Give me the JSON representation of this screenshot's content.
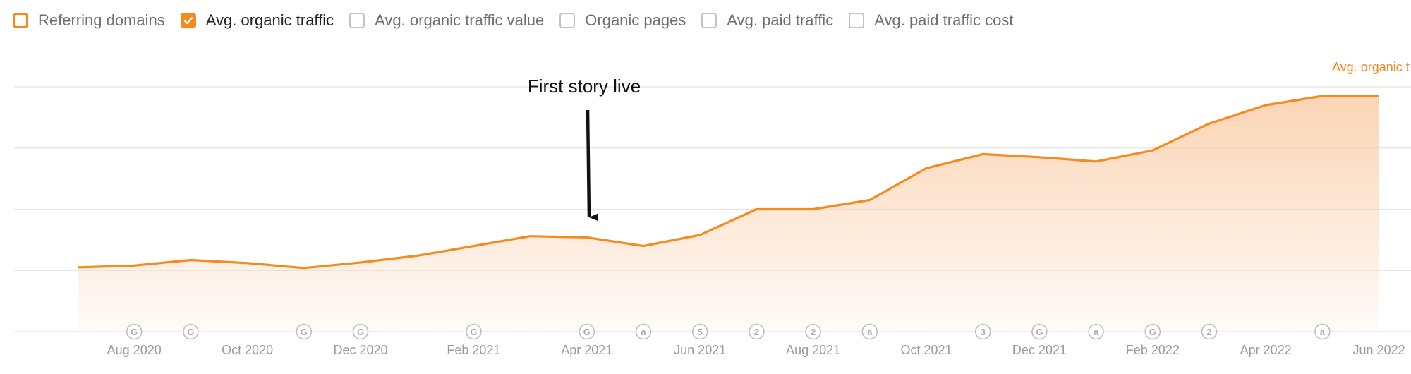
{
  "toolbar": {
    "items": [
      {
        "label": "Referring domains",
        "checked": false,
        "accent_outline": true
      },
      {
        "label": "Avg. organic traffic",
        "checked": true
      },
      {
        "label": "Avg. organic traffic value",
        "checked": false
      },
      {
        "label": "Organic pages",
        "checked": false
      },
      {
        "label": "Avg. paid traffic",
        "checked": false
      },
      {
        "label": "Avg. paid traffic cost",
        "checked": false
      }
    ]
  },
  "colors": {
    "accent": "#f58a1f",
    "area_fill_top": "#fbd2b0",
    "grid": "#e3e3e3",
    "muted_text": "#9a9a9a",
    "annotation": "#111111"
  },
  "chart_data": {
    "type": "area",
    "series": [
      {
        "name": "Avg. organic traffic",
        "values": [
          1.05,
          1.08,
          1.17,
          1.12,
          1.04,
          1.13,
          1.24,
          1.4,
          1.56,
          1.54,
          1.4,
          1.58,
          2.0,
          2.0,
          2.15,
          2.67,
          2.9,
          2.85,
          2.78,
          2.96,
          3.4,
          3.7,
          3.85,
          3.85
        ]
      }
    ],
    "x_ticks": [
      "Aug 2020",
      "Oct 2020",
      "Dec 2020",
      "Feb 2021",
      "Apr 2021",
      "Jun 2021",
      "Aug 2021",
      "Oct 2021",
      "Dec 2021",
      "Feb 2022",
      "Apr 2022",
      "Jun 2022"
    ],
    "ylim": [
      0,
      4
    ],
    "grid": true,
    "series_label": "Avg. organic t",
    "annotation": {
      "text": "First story live",
      "at_index": 9
    },
    "event_markers": [
      {
        "index": 1,
        "label": "G"
      },
      {
        "index": 2,
        "label": "G"
      },
      {
        "index": 4,
        "label": "G"
      },
      {
        "index": 5,
        "label": "G"
      },
      {
        "index": 7,
        "label": "G"
      },
      {
        "index": 9,
        "label": "G"
      },
      {
        "index": 10,
        "label": "a"
      },
      {
        "index": 11,
        "label": "5"
      },
      {
        "index": 12,
        "label": "2"
      },
      {
        "index": 13,
        "label": "2"
      },
      {
        "index": 14,
        "label": "a"
      },
      {
        "index": 16,
        "label": "3"
      },
      {
        "index": 17,
        "label": "G"
      },
      {
        "index": 18,
        "label": "a"
      },
      {
        "index": 19,
        "label": "G"
      },
      {
        "index": 20,
        "label": "2"
      },
      {
        "index": 22,
        "label": "a"
      }
    ]
  }
}
